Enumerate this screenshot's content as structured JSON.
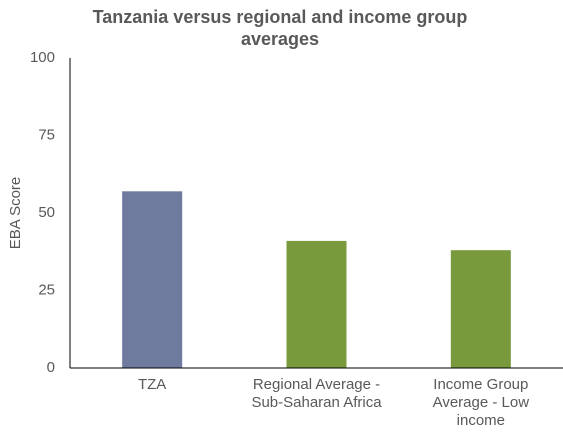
{
  "chart_data": {
    "type": "bar",
    "title": "Tanzania versus regional and income group averages",
    "y_label": "EBA Score",
    "categories": [
      "TZA",
      "Regional Average - Sub-Saharan Africa",
      "Income Group Average - Low income"
    ],
    "values": [
      57,
      41,
      38
    ],
    "colors": [
      "#6f7a9f",
      "#789a3d",
      "#789a3d"
    ],
    "ylim": [
      0,
      100
    ],
    "yticks": [
      0,
      25,
      50,
      75,
      100
    ],
    "grid": false
  }
}
